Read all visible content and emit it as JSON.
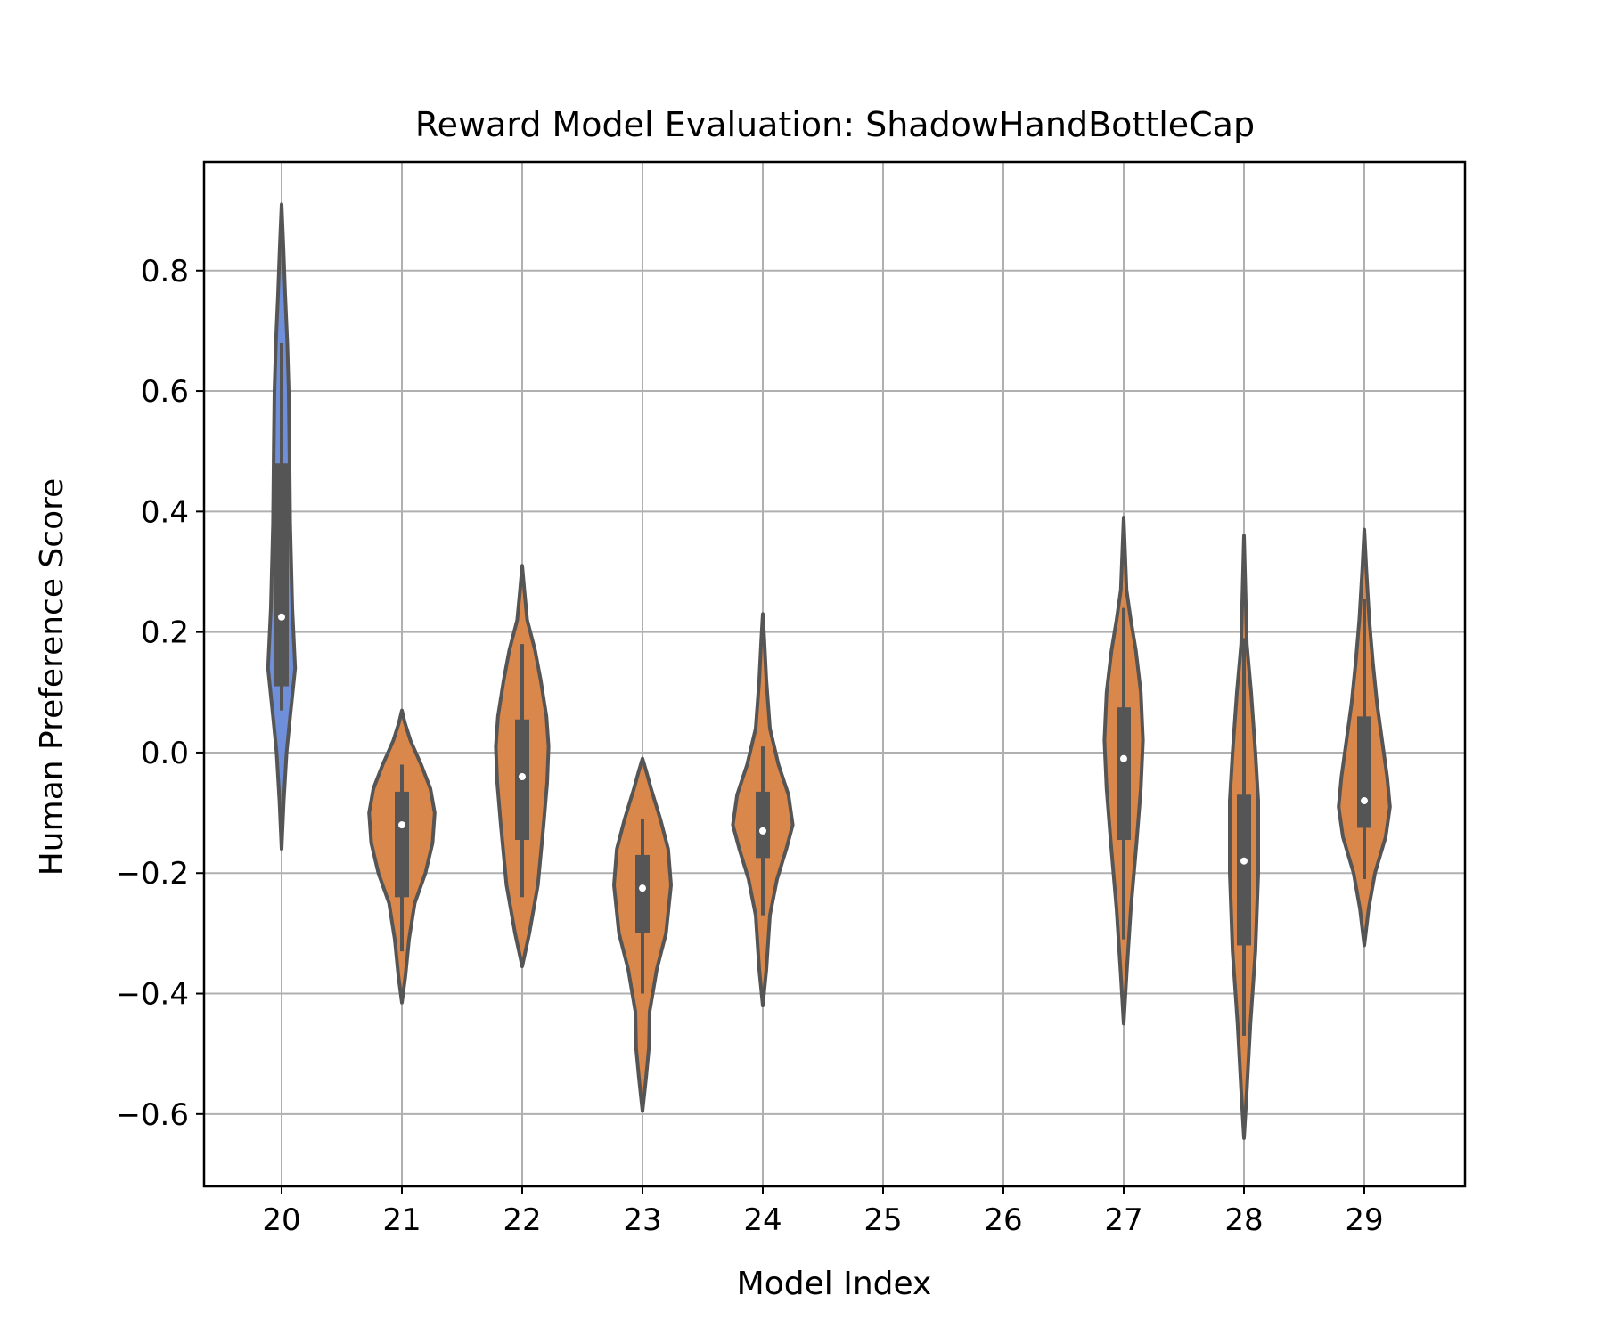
{
  "chart_data": {
    "type": "violin",
    "title": "Reward Model Evaluation: ShadowHandBottleCap",
    "xlabel": "Model Index",
    "ylabel": "Human Preference Score",
    "categories": [
      "20",
      "21",
      "22",
      "23",
      "24",
      "25",
      "26",
      "27",
      "28",
      "29"
    ],
    "yticks": [
      0.8,
      0.6,
      0.4,
      0.2,
      0.0,
      -0.2,
      -0.4,
      -0.6
    ],
    "ytick_labels": [
      "0.8",
      "0.6",
      "0.4",
      "0.2",
      "0.0",
      "−0.2",
      "−0.4",
      "−0.6"
    ],
    "ylim": [
      -0.72,
      0.98
    ],
    "grid": true,
    "colors": {
      "highlight": "#6F8FDB",
      "default": "#D9874A",
      "outline": "#555555",
      "grid": "#b0b0b0"
    },
    "violins": [
      {
        "category": "20",
        "color": "highlight",
        "min": -0.16,
        "max": 0.91,
        "q1": 0.11,
        "median": 0.225,
        "q3": 0.48,
        "whisker_low": 0.07,
        "whisker_high": 0.68,
        "profile": [
          [
            -0.16,
            0
          ],
          [
            -0.08,
            0.03
          ],
          [
            0.0,
            0.07
          ],
          [
            0.06,
            0.12
          ],
          [
            0.14,
            0.19
          ],
          [
            0.24,
            0.15
          ],
          [
            0.38,
            0.12
          ],
          [
            0.5,
            0.11
          ],
          [
            0.6,
            0.1
          ],
          [
            0.68,
            0.08
          ],
          [
            0.76,
            0.05
          ],
          [
            0.84,
            0.025
          ],
          [
            0.91,
            0
          ]
        ]
      },
      {
        "category": "21",
        "color": "default",
        "min": -0.415,
        "max": 0.07,
        "q1": -0.24,
        "median": -0.12,
        "q3": -0.065,
        "whisker_low": -0.33,
        "whisker_high": -0.02,
        "profile": [
          [
            -0.415,
            0
          ],
          [
            -0.37,
            0.05
          ],
          [
            -0.31,
            0.1
          ],
          [
            -0.25,
            0.18
          ],
          [
            -0.2,
            0.33
          ],
          [
            -0.15,
            0.43
          ],
          [
            -0.1,
            0.46
          ],
          [
            -0.06,
            0.4
          ],
          [
            -0.02,
            0.27
          ],
          [
            0.02,
            0.12
          ],
          [
            0.05,
            0.04
          ],
          [
            0.07,
            0
          ]
        ]
      },
      {
        "category": "22",
        "color": "default",
        "min": -0.355,
        "max": 0.31,
        "q1": -0.145,
        "median": -0.04,
        "q3": 0.055,
        "whisker_low": -0.24,
        "whisker_high": 0.18,
        "profile": [
          [
            -0.355,
            0
          ],
          [
            -0.3,
            0.1
          ],
          [
            -0.22,
            0.22
          ],
          [
            -0.12,
            0.3
          ],
          [
            -0.05,
            0.35
          ],
          [
            0.01,
            0.37
          ],
          [
            0.06,
            0.34
          ],
          [
            0.12,
            0.26
          ],
          [
            0.17,
            0.18
          ],
          [
            0.22,
            0.07
          ],
          [
            0.27,
            0.03
          ],
          [
            0.31,
            0
          ]
        ]
      },
      {
        "category": "23",
        "color": "default",
        "min": -0.595,
        "max": -0.01,
        "q1": -0.3,
        "median": -0.225,
        "q3": -0.17,
        "whisker_low": -0.4,
        "whisker_high": -0.11,
        "profile": [
          [
            -0.595,
            0
          ],
          [
            -0.54,
            0.05
          ],
          [
            -0.49,
            0.09
          ],
          [
            -0.43,
            0.1
          ],
          [
            -0.36,
            0.2
          ],
          [
            -0.3,
            0.33
          ],
          [
            -0.22,
            0.4
          ],
          [
            -0.16,
            0.36
          ],
          [
            -0.11,
            0.25
          ],
          [
            -0.06,
            0.12
          ],
          [
            -0.03,
            0.05
          ],
          [
            -0.01,
            0
          ]
        ]
      },
      {
        "category": "24",
        "color": "default",
        "min": -0.42,
        "max": 0.23,
        "q1": -0.175,
        "median": -0.13,
        "q3": -0.065,
        "whisker_low": -0.27,
        "whisker_high": 0.01,
        "profile": [
          [
            -0.42,
            0
          ],
          [
            -0.36,
            0.05
          ],
          [
            -0.27,
            0.1
          ],
          [
            -0.21,
            0.2
          ],
          [
            -0.16,
            0.33
          ],
          [
            -0.12,
            0.42
          ],
          [
            -0.07,
            0.36
          ],
          [
            -0.02,
            0.22
          ],
          [
            0.04,
            0.1
          ],
          [
            0.12,
            0.05
          ],
          [
            0.19,
            0.02
          ],
          [
            0.23,
            0
          ]
        ]
      },
      {
        "category": "27",
        "color": "default",
        "min": -0.45,
        "max": 0.39,
        "q1": -0.145,
        "median": -0.01,
        "q3": 0.075,
        "whisker_low": -0.31,
        "whisker_high": 0.24,
        "profile": [
          [
            -0.45,
            0
          ],
          [
            -0.37,
            0.04
          ],
          [
            -0.26,
            0.1
          ],
          [
            -0.15,
            0.18
          ],
          [
            -0.06,
            0.24
          ],
          [
            0.02,
            0.27
          ],
          [
            0.1,
            0.24
          ],
          [
            0.17,
            0.17
          ],
          [
            0.22,
            0.1
          ],
          [
            0.27,
            0.04
          ],
          [
            0.33,
            0.02
          ],
          [
            0.39,
            0
          ]
        ]
      },
      {
        "category": "28",
        "color": "default",
        "min": -0.64,
        "max": 0.36,
        "q1": -0.32,
        "median": -0.18,
        "q3": -0.07,
        "whisker_low": -0.47,
        "whisker_high": 0.19,
        "profile": [
          [
            -0.64,
            0
          ],
          [
            -0.56,
            0.04
          ],
          [
            -0.45,
            0.09
          ],
          [
            -0.33,
            0.16
          ],
          [
            -0.2,
            0.2
          ],
          [
            -0.08,
            0.2
          ],
          [
            0.0,
            0.16
          ],
          [
            0.1,
            0.1
          ],
          [
            0.18,
            0.04
          ],
          [
            0.27,
            0.02
          ],
          [
            0.36,
            0
          ]
        ]
      },
      {
        "category": "29",
        "color": "default",
        "min": -0.32,
        "max": 0.37,
        "q1": -0.125,
        "median": -0.08,
        "q3": 0.06,
        "whisker_low": -0.21,
        "whisker_high": 0.255,
        "profile": [
          [
            -0.32,
            0
          ],
          [
            -0.26,
            0.06
          ],
          [
            -0.2,
            0.15
          ],
          [
            -0.14,
            0.3
          ],
          [
            -0.09,
            0.36
          ],
          [
            -0.04,
            0.32
          ],
          [
            0.02,
            0.25
          ],
          [
            0.08,
            0.18
          ],
          [
            0.15,
            0.12
          ],
          [
            0.22,
            0.07
          ],
          [
            0.3,
            0.03
          ],
          [
            0.37,
            0
          ]
        ]
      }
    ]
  }
}
